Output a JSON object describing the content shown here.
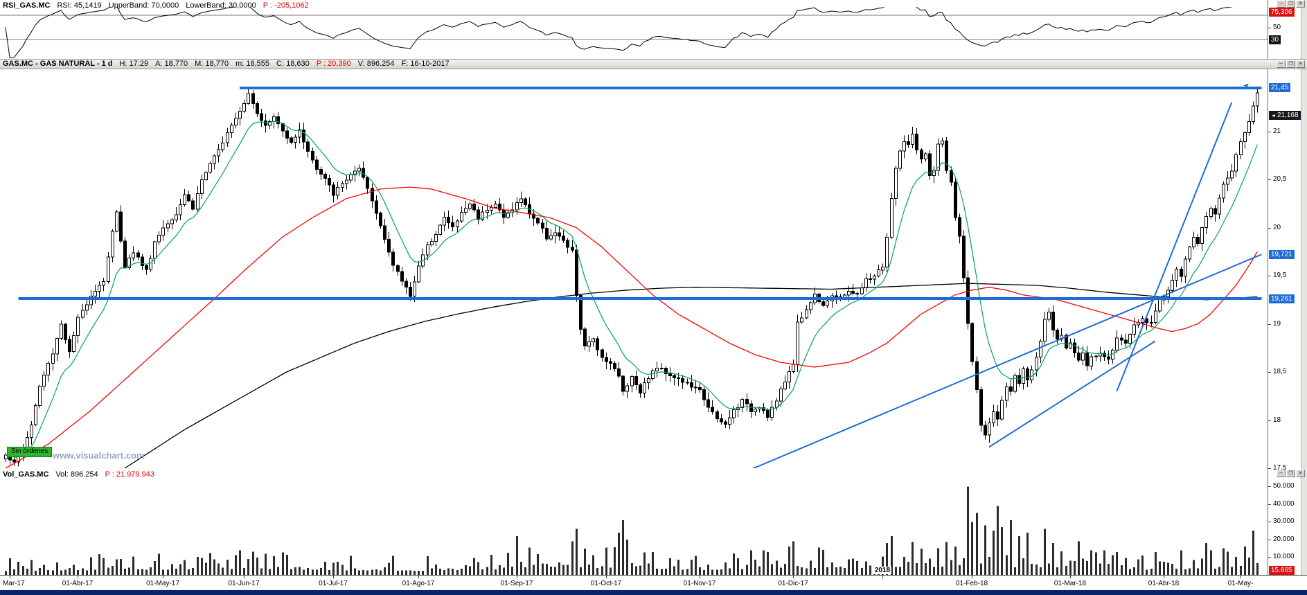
{
  "app": {
    "icons": {
      "minimize": "─",
      "restore": "❐",
      "close": "✕"
    },
    "watermark": "www.visualchart.com",
    "orders_label": "Sin órdenes"
  },
  "rsi_panel": {
    "header": {
      "symbol": "RSI_GAS.MC",
      "rsi": "RSI: 45,1419",
      "upper": "UpperBand: 70,0000",
      "lower": "LowerBand: 30,0000",
      "p": "P : -205,1062"
    }
  },
  "main_panel": {
    "header": {
      "title": "GAS.MC - GAS NATURAL - 1 d",
      "time": "H: 17:29",
      "open": "A: 18,770",
      "high": "M: 18,770",
      "low": "m: 18,555",
      "close": "C: 18,630",
      "p": "P : 20,390",
      "volume": "V: 896.254",
      "date": "F: 16-10-2017"
    }
  },
  "vol_panel": {
    "header": {
      "symbol": "Vol_GAS.MC",
      "vol": "Vol: 896.254",
      "p": "P : 21.979.943"
    }
  },
  "chart_data": {
    "type": "candlestick",
    "title": "GAS.MC - GAS NATURAL daily candles with RSI(14) panel, volume panel, moving averages and blue trend/horizontal drawing lines",
    "timeframe": "1 d",
    "days": 295,
    "price_range": [
      17.5,
      21.5
    ],
    "price_ticks": [
      {
        "label": "21",
        "v": 21
      },
      {
        "label": "20,5",
        "v": 20.5
      },
      {
        "label": "20",
        "v": 20
      },
      {
        "label": "19,5",
        "v": 19.5
      },
      {
        "label": "19",
        "v": 19
      },
      {
        "label": "18,5",
        "v": 18.5
      },
      {
        "label": "18",
        "v": 18
      },
      {
        "label": "17,5",
        "v": 17.5
      }
    ],
    "price_badges": [
      {
        "label": "21,45",
        "v": 21.45,
        "type": "drawing"
      },
      {
        "label": "21,168",
        "v": 21.168,
        "type": "last"
      },
      {
        "label": "19,721",
        "v": 19.721,
        "type": "drawing"
      },
      {
        "label": "19,261",
        "v": 19.261,
        "type": "drawing"
      }
    ],
    "rsi_axis": {
      "upper_badge": {
        "label": "75,306",
        "v": 75.306
      },
      "mid": {
        "label": "50",
        "v": 50
      },
      "lower_badge": {
        "label": "30",
        "v": 30
      }
    },
    "rsi_bands": {
      "upper": 70,
      "lower": 30
    },
    "rsi_period": 14,
    "ema_green_period": 10,
    "volume_ticks": [
      {
        "label": "50.000",
        "v": 50000
      },
      {
        "label": "40.000",
        "v": 40000
      },
      {
        "label": "30.000",
        "v": 30000
      },
      {
        "label": "20.000",
        "v": 20000
      },
      {
        "label": "10.000",
        "v": 10000
      }
    ],
    "volume_badge": {
      "label": "15.865"
    },
    "date_ticks": [
      {
        "label": "Mar-17",
        "i": 1
      },
      {
        "label": "01-Abr-17",
        "i": 17
      },
      {
        "label": "01-May-17",
        "i": 37
      },
      {
        "label": "01-Jun-17",
        "i": 56
      },
      {
        "label": "01-Jul-17",
        "i": 77
      },
      {
        "label": "01-Ago-17",
        "i": 97
      },
      {
        "label": "01-Sep-17",
        "i": 120
      },
      {
        "label": "01-Oct-17",
        "i": 141
      },
      {
        "label": "01-Nov-17",
        "i": 163
      },
      {
        "label": "01-Dic-17",
        "i": 185
      },
      {
        "label": "2018",
        "i": 206,
        "year": true
      },
      {
        "label": "01-Feb-18",
        "i": 227
      },
      {
        "label": "01-Mar-18",
        "i": 250
      },
      {
        "label": "01-Abr-18",
        "i": 272
      },
      {
        "label": "01-May-",
        "i": 290
      }
    ],
    "close_anchors": [
      [
        0,
        17.65
      ],
      [
        2,
        17.55
      ],
      [
        4,
        17.7
      ],
      [
        6,
        17.95
      ],
      [
        8,
        18.35
      ],
      [
        11,
        18.7
      ],
      [
        13,
        19.0
      ],
      [
        15,
        18.7
      ],
      [
        17,
        19.05
      ],
      [
        20,
        19.3
      ],
      [
        23,
        19.45
      ],
      [
        25,
        19.95
      ],
      [
        26,
        20.15
      ],
      [
        28,
        19.6
      ],
      [
        30,
        19.75
      ],
      [
        33,
        19.55
      ],
      [
        35,
        19.85
      ],
      [
        37,
        20.0
      ],
      [
        40,
        20.15
      ],
      [
        42,
        20.35
      ],
      [
        44,
        20.2
      ],
      [
        46,
        20.5
      ],
      [
        48,
        20.65
      ],
      [
        50,
        20.8
      ],
      [
        52,
        21.0
      ],
      [
        54,
        21.15
      ],
      [
        56,
        21.3
      ],
      [
        57,
        21.4
      ],
      [
        59,
        21.2
      ],
      [
        61,
        21.05
      ],
      [
        63,
        21.15
      ],
      [
        65,
        21.0
      ],
      [
        67,
        20.9
      ],
      [
        69,
        21.0
      ],
      [
        71,
        20.8
      ],
      [
        73,
        20.6
      ],
      [
        75,
        20.5
      ],
      [
        77,
        20.35
      ],
      [
        79,
        20.45
      ],
      [
        81,
        20.55
      ],
      [
        83,
        20.6
      ],
      [
        85,
        20.4
      ],
      [
        87,
        20.15
      ],
      [
        89,
        19.9
      ],
      [
        91,
        19.6
      ],
      [
        93,
        19.45
      ],
      [
        95,
        19.3
      ],
      [
        97,
        19.6
      ],
      [
        99,
        19.8
      ],
      [
        101,
        19.95
      ],
      [
        103,
        20.1
      ],
      [
        105,
        20.0
      ],
      [
        107,
        20.15
      ],
      [
        109,
        20.25
      ],
      [
        111,
        20.1
      ],
      [
        113,
        20.2
      ],
      [
        115,
        20.25
      ],
      [
        117,
        20.1
      ],
      [
        119,
        20.2
      ],
      [
        121,
        20.3
      ],
      [
        123,
        20.15
      ],
      [
        125,
        20.05
      ],
      [
        127,
        19.9
      ],
      [
        129,
        19.95
      ],
      [
        131,
        19.85
      ],
      [
        133,
        19.75
      ],
      [
        134,
        19.3
      ],
      [
        135,
        18.95
      ],
      [
        136,
        18.75
      ],
      [
        138,
        18.85
      ],
      [
        140,
        18.65
      ],
      [
        142,
        18.6
      ],
      [
        144,
        18.45
      ],
      [
        145,
        18.3
      ],
      [
        147,
        18.45
      ],
      [
        149,
        18.3
      ],
      [
        151,
        18.45
      ],
      [
        153,
        18.55
      ],
      [
        155,
        18.5
      ],
      [
        157,
        18.45
      ],
      [
        159,
        18.4
      ],
      [
        161,
        18.35
      ],
      [
        163,
        18.3
      ],
      [
        165,
        18.15
      ],
      [
        167,
        18.0
      ],
      [
        169,
        17.95
      ],
      [
        171,
        18.1
      ],
      [
        173,
        18.2
      ],
      [
        175,
        18.1
      ],
      [
        177,
        18.15
      ],
      [
        179,
        18.05
      ],
      [
        181,
        18.2
      ],
      [
        183,
        18.4
      ],
      [
        185,
        18.6
      ],
      [
        186,
        19.0
      ],
      [
        188,
        19.15
      ],
      [
        190,
        19.3
      ],
      [
        192,
        19.2
      ],
      [
        194,
        19.3
      ],
      [
        196,
        19.25
      ],
      [
        198,
        19.35
      ],
      [
        200,
        19.3
      ],
      [
        202,
        19.45
      ],
      [
        204,
        19.5
      ],
      [
        206,
        19.6
      ],
      [
        207,
        19.9
      ],
      [
        208,
        20.3
      ],
      [
        209,
        20.6
      ],
      [
        210,
        20.8
      ],
      [
        211,
        20.9
      ],
      [
        212,
        20.85
      ],
      [
        213,
        20.95
      ],
      [
        214,
        20.8
      ],
      [
        215,
        20.7
      ],
      [
        216,
        20.75
      ],
      [
        217,
        20.55
      ],
      [
        218,
        20.6
      ],
      [
        219,
        20.85
      ],
      [
        220,
        20.9
      ],
      [
        221,
        20.6
      ],
      [
        222,
        20.45
      ],
      [
        223,
        20.1
      ],
      [
        224,
        19.9
      ],
      [
        225,
        19.5
      ],
      [
        226,
        19.0
      ],
      [
        227,
        18.6
      ],
      [
        228,
        18.3
      ],
      [
        229,
        17.95
      ],
      [
        230,
        17.85
      ],
      [
        231,
        17.95
      ],
      [
        232,
        18.1
      ],
      [
        233,
        18.0
      ],
      [
        234,
        18.2
      ],
      [
        235,
        18.35
      ],
      [
        236,
        18.3
      ],
      [
        237,
        18.45
      ],
      [
        238,
        18.4
      ],
      [
        239,
        18.55
      ],
      [
        240,
        18.4
      ],
      [
        241,
        18.5
      ],
      [
        242,
        18.65
      ],
      [
        243,
        18.8
      ],
      [
        244,
        19.05
      ],
      [
        245,
        19.1
      ],
      [
        246,
        18.95
      ],
      [
        247,
        18.85
      ],
      [
        248,
        18.9
      ],
      [
        249,
        18.75
      ],
      [
        250,
        18.8
      ],
      [
        251,
        18.7
      ],
      [
        252,
        18.6
      ],
      [
        253,
        18.7
      ],
      [
        254,
        18.55
      ],
      [
        255,
        18.65
      ],
      [
        257,
        18.7
      ],
      [
        259,
        18.65
      ],
      [
        261,
        18.85
      ],
      [
        263,
        18.8
      ],
      [
        265,
        19.0
      ],
      [
        267,
        19.05
      ],
      [
        269,
        19.0
      ],
      [
        271,
        19.25
      ],
      [
        273,
        19.35
      ],
      [
        274,
        19.45
      ],
      [
        275,
        19.55
      ],
      [
        276,
        19.5
      ],
      [
        277,
        19.65
      ],
      [
        278,
        19.8
      ],
      [
        279,
        19.9
      ],
      [
        280,
        19.85
      ],
      [
        281,
        20.0
      ],
      [
        282,
        20.1
      ],
      [
        283,
        20.2
      ],
      [
        284,
        20.15
      ],
      [
        285,
        20.3
      ],
      [
        286,
        20.45
      ],
      [
        287,
        20.5
      ],
      [
        288,
        20.6
      ],
      [
        289,
        20.75
      ],
      [
        290,
        20.9
      ],
      [
        291,
        21.0
      ],
      [
        292,
        21.1
      ],
      [
        293,
        21.25
      ],
      [
        294,
        21.4
      ]
    ],
    "ma_red_anchors": [
      [
        0,
        17.5
      ],
      [
        10,
        17.75
      ],
      [
        20,
        18.1
      ],
      [
        30,
        18.5
      ],
      [
        40,
        18.9
      ],
      [
        50,
        19.3
      ],
      [
        56,
        19.55
      ],
      [
        65,
        19.9
      ],
      [
        72,
        20.1
      ],
      [
        80,
        20.3
      ],
      [
        88,
        20.4
      ],
      [
        95,
        20.42
      ],
      [
        100,
        20.4
      ],
      [
        108,
        20.3
      ],
      [
        115,
        20.2
      ],
      [
        122,
        20.15
      ],
      [
        128,
        20.1
      ],
      [
        134,
        20.0
      ],
      [
        140,
        19.8
      ],
      [
        146,
        19.55
      ],
      [
        152,
        19.3
      ],
      [
        158,
        19.1
      ],
      [
        164,
        18.95
      ],
      [
        170,
        18.8
      ],
      [
        176,
        18.68
      ],
      [
        182,
        18.6
      ],
      [
        190,
        18.55
      ],
      [
        198,
        18.6
      ],
      [
        203,
        18.7
      ],
      [
        207,
        18.8
      ],
      [
        211,
        18.95
      ],
      [
        215,
        19.1
      ],
      [
        219,
        19.2
      ],
      [
        223,
        19.3
      ],
      [
        227,
        19.35
      ],
      [
        231,
        19.38
      ],
      [
        235,
        19.35
      ],
      [
        239,
        19.3
      ],
      [
        247,
        19.25
      ],
      [
        251,
        19.2
      ],
      [
        255,
        19.15
      ],
      [
        259,
        19.1
      ],
      [
        263,
        19.05
      ],
      [
        267,
        19.0
      ],
      [
        271,
        18.95
      ],
      [
        274,
        18.92
      ],
      [
        277,
        18.95
      ],
      [
        280,
        19.0
      ],
      [
        283,
        19.1
      ],
      [
        286,
        19.25
      ],
      [
        289,
        19.4
      ],
      [
        292,
        19.6
      ],
      [
        294,
        19.75
      ]
    ],
    "ma_black_anchors": [
      [
        25,
        17.42
      ],
      [
        28,
        17.5
      ],
      [
        35,
        17.7
      ],
      [
        42,
        17.9
      ],
      [
        50,
        18.1
      ],
      [
        58,
        18.3
      ],
      [
        66,
        18.5
      ],
      [
        74,
        18.65
      ],
      [
        82,
        18.8
      ],
      [
        90,
        18.92
      ],
      [
        98,
        19.02
      ],
      [
        106,
        19.1
      ],
      [
        114,
        19.17
      ],
      [
        122,
        19.23
      ],
      [
        130,
        19.28
      ],
      [
        138,
        19.32
      ],
      [
        146,
        19.35
      ],
      [
        154,
        19.37
      ],
      [
        162,
        19.38
      ],
      [
        178,
        19.37
      ],
      [
        194,
        19.36
      ],
      [
        210,
        19.39
      ],
      [
        226,
        19.42
      ],
      [
        242,
        19.4
      ],
      [
        250,
        19.37
      ],
      [
        258,
        19.33
      ],
      [
        266,
        19.3
      ],
      [
        274,
        19.27
      ],
      [
        282,
        19.25
      ],
      [
        294,
        19.28
      ]
    ],
    "volume_base_anchors": [
      [
        0,
        6000
      ],
      [
        20,
        7500
      ],
      [
        40,
        8500
      ],
      [
        56,
        9500
      ],
      [
        77,
        7500
      ],
      [
        97,
        6500
      ],
      [
        120,
        9500
      ],
      [
        134,
        11000
      ],
      [
        145,
        10000
      ],
      [
        163,
        8000
      ],
      [
        185,
        9500
      ],
      [
        206,
        10500
      ],
      [
        227,
        14000
      ],
      [
        240,
        11000
      ],
      [
        252,
        9000
      ],
      [
        272,
        8000
      ],
      [
        285,
        10000
      ],
      [
        294,
        12000
      ]
    ],
    "volume_spikes": [
      [
        120,
        22000
      ],
      [
        133,
        19000
      ],
      [
        134,
        26000
      ],
      [
        144,
        24000
      ],
      [
        145,
        31000
      ],
      [
        146,
        20000
      ],
      [
        184,
        16000
      ],
      [
        185,
        19000
      ],
      [
        207,
        18000
      ],
      [
        208,
        22000
      ],
      [
        219,
        15000
      ],
      [
        223,
        16000
      ],
      [
        226,
        50000
      ],
      [
        227,
        30000
      ],
      [
        228,
        35000
      ],
      [
        230,
        28000
      ],
      [
        232,
        25000
      ],
      [
        233,
        39000
      ],
      [
        234,
        27000
      ],
      [
        236,
        31000
      ],
      [
        238,
        22000
      ],
      [
        240,
        24000
      ],
      [
        244,
        26000
      ],
      [
        246,
        18000
      ],
      [
        252,
        19000
      ],
      [
        255,
        14000
      ],
      [
        261,
        13000
      ],
      [
        270,
        13000
      ],
      [
        276,
        14000
      ],
      [
        282,
        18000
      ],
      [
        286,
        15000
      ],
      [
        291,
        16000
      ],
      [
        293,
        25000
      ]
    ],
    "drawings": {
      "color": "#1f6cd5",
      "hlines": [
        {
          "p": 21.45,
          "i1": 55,
          "i2": 295
        },
        {
          "p": 19.261,
          "i1": 3,
          "i2": 295
        }
      ],
      "tlines": [
        {
          "i1": 173,
          "p1": 17.45,
          "i2": 295,
          "p2": 19.721
        },
        {
          "i1": 231,
          "p1": 17.72,
          "i2": 270,
          "p2": 18.82
        },
        {
          "i1": 261,
          "p1": 18.3,
          "i2": 288,
          "p2": 21.3
        }
      ],
      "arrow": "➤"
    },
    "colors": {
      "up": "#ffffff",
      "down": "#000000",
      "ma_fast": "#00a651",
      "ma_mid": "#ff0000",
      "ma_slow": "#000000",
      "volume": "#2b2b2b",
      "badge_blue": "#1f6cd5",
      "badge_red": "#dd1111",
      "badge_dark": "#16181c"
    }
  }
}
